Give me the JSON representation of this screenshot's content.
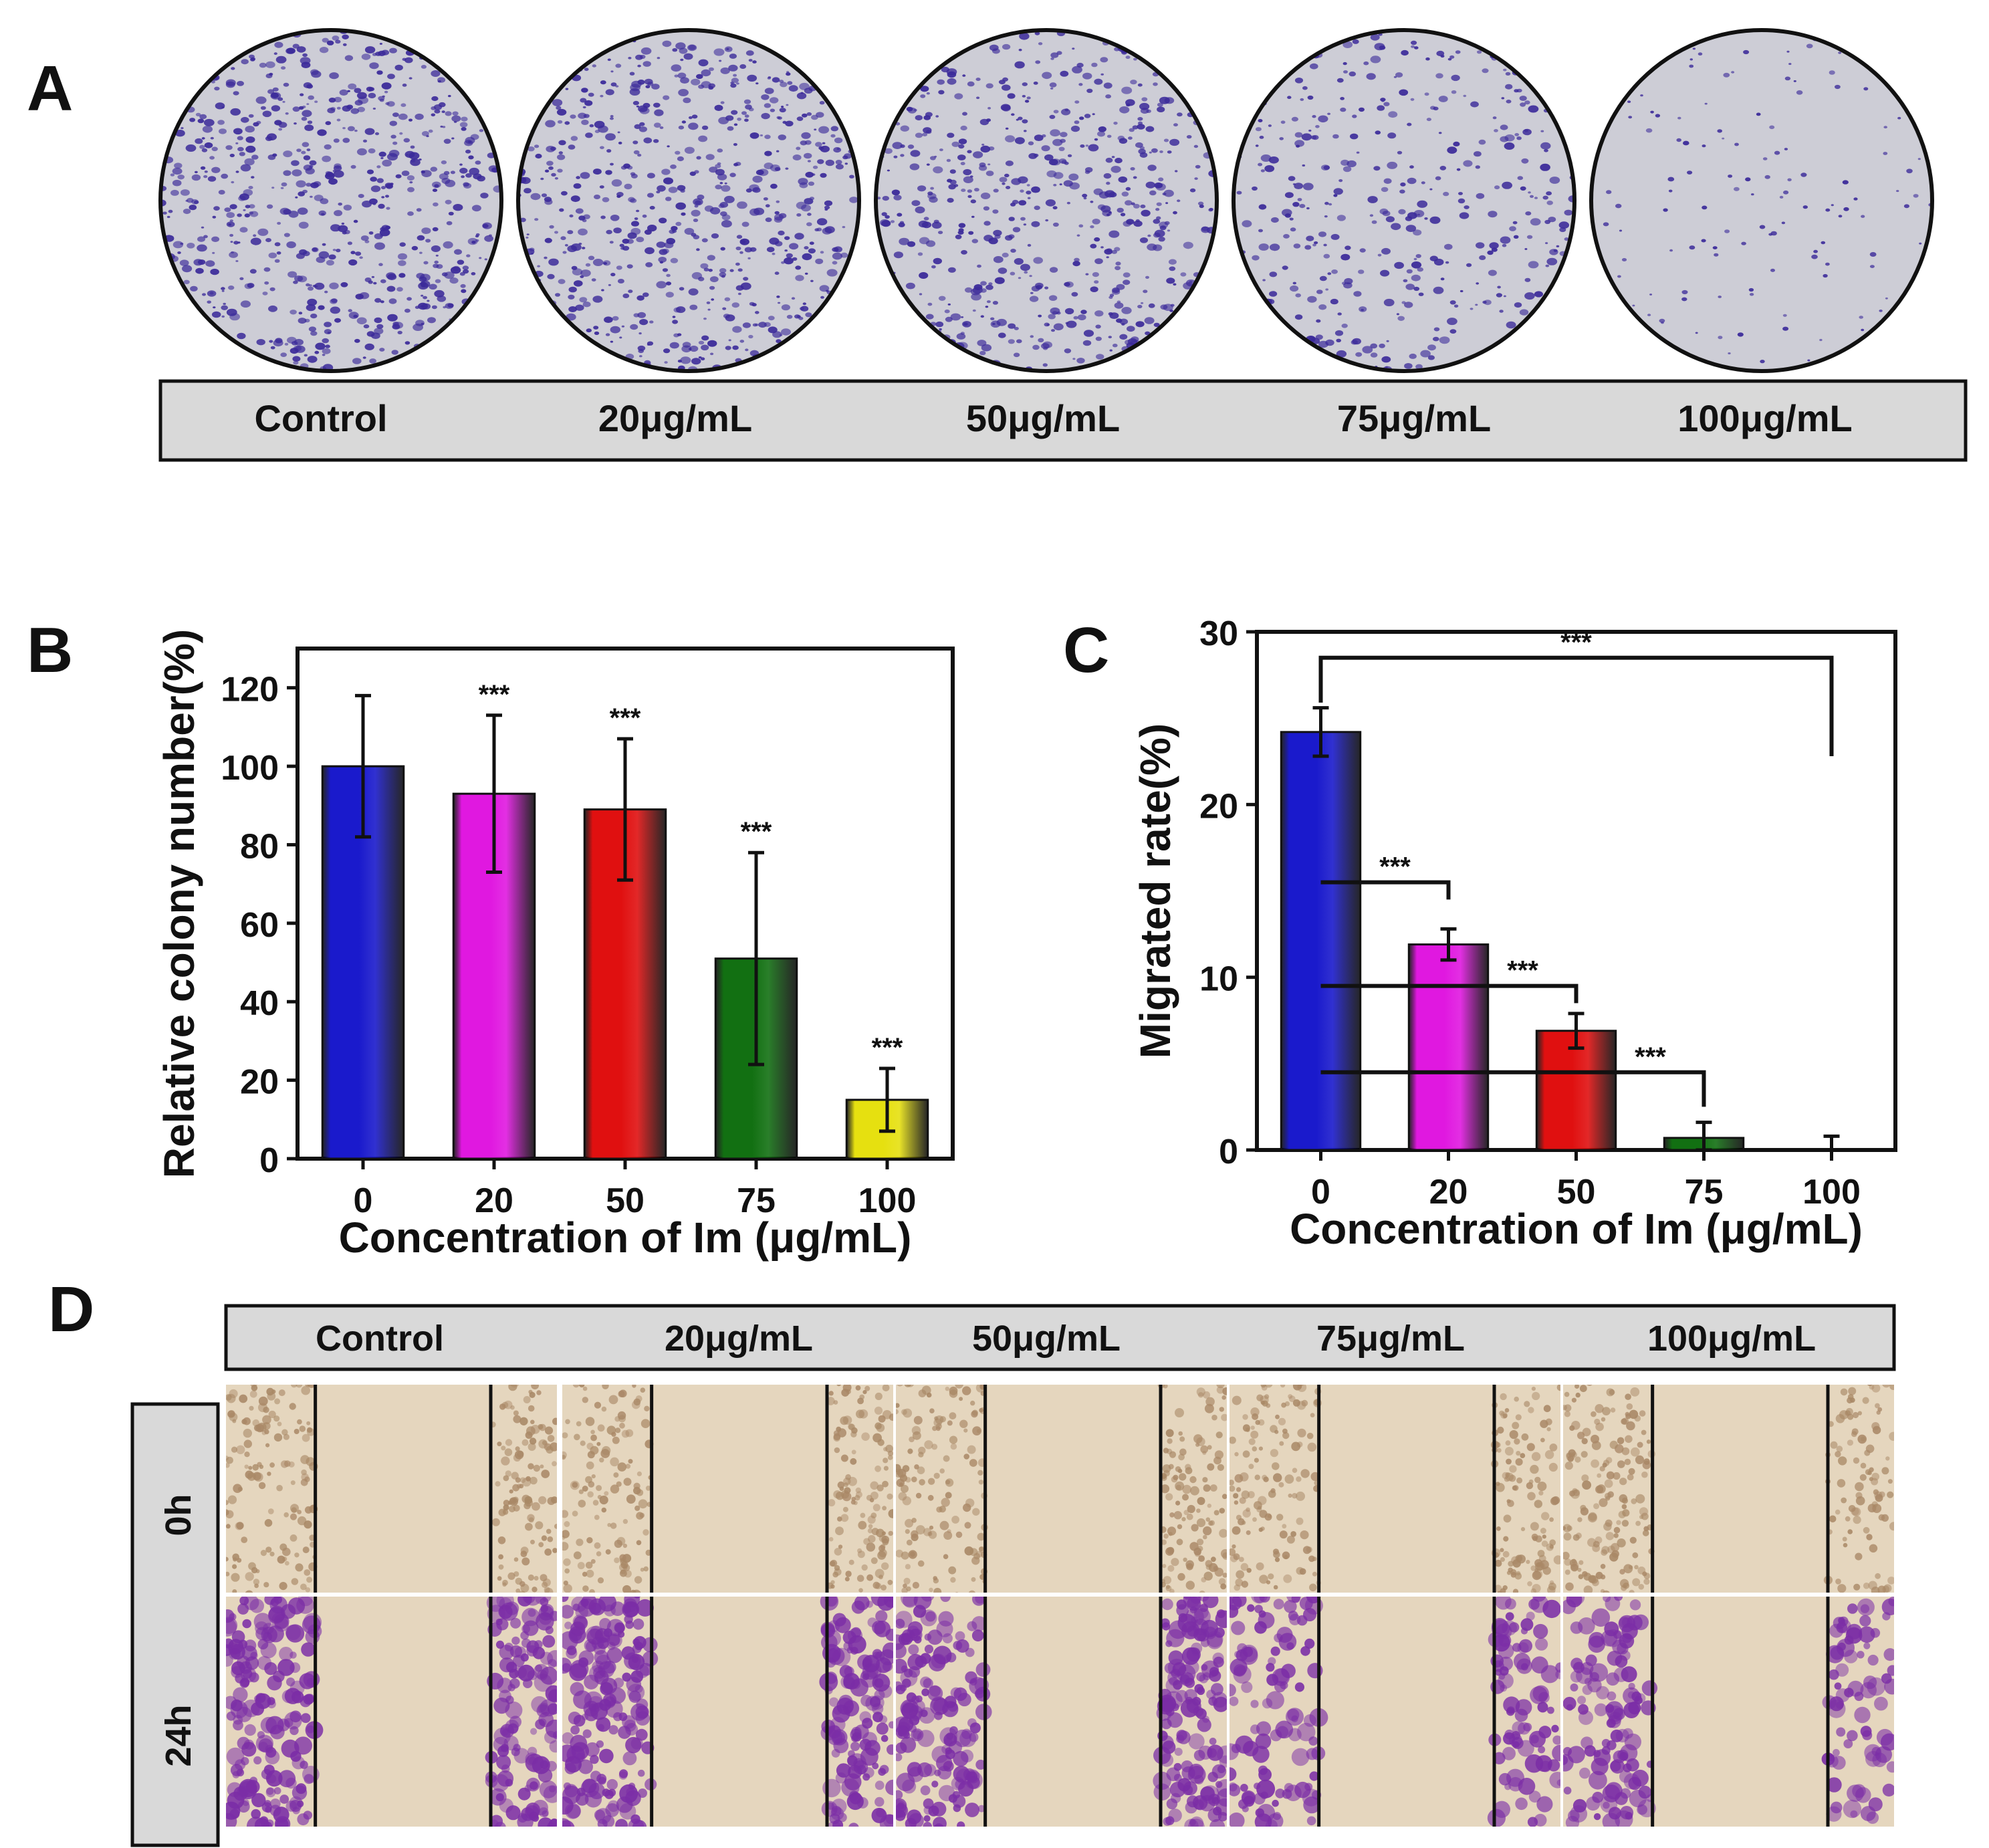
{
  "panels": {
    "a": {
      "letter": "A",
      "labels": [
        "Control",
        "20μg/mL",
        "50μg/mL",
        "75μg/mL",
        "100μg/mL"
      ],
      "dish_stain_color": "#3b2a9a",
      "dish_colony_density": [
        1.0,
        0.95,
        0.85,
        0.55,
        0.18
      ]
    },
    "b": {
      "letter": "B"
    },
    "c": {
      "letter": "C"
    },
    "d": {
      "letter": "D",
      "column_labels": [
        "Control",
        "20μg/mL",
        "50μg/mL",
        "75μg/mL",
        "100μg/mL"
      ],
      "row_labels": [
        "0h",
        "24h"
      ],
      "cell_color_0h": "#a98866",
      "cell_color_24h": "#7b2da6"
    }
  },
  "chart_data": [
    {
      "id": "B",
      "type": "bar",
      "categories": [
        "0",
        "20",
        "50",
        "75",
        "100"
      ],
      "values": [
        100,
        93,
        89,
        51,
        15
      ],
      "errors": [
        18,
        20,
        18,
        27,
        8
      ],
      "significance": [
        "",
        "***",
        "***",
        "***",
        "***"
      ],
      "bar_colors": [
        "#1a1acc",
        "#e018e0",
        "#e01010",
        "#127012",
        "#e6e010"
      ],
      "title": "",
      "xlabel": "Concentration of Im (μg/mL)",
      "ylabel": "Relative colony number(%)",
      "ylim": [
        0,
        130
      ],
      "yticks": [
        0,
        20,
        40,
        60,
        80,
        100,
        120
      ],
      "grid": false
    },
    {
      "id": "C",
      "type": "bar",
      "categories": [
        "0",
        "20",
        "50",
        "75",
        "100"
      ],
      "values": [
        24.2,
        11.9,
        6.9,
        0.7,
        0.0
      ],
      "errors": [
        1.4,
        0.9,
        1.0,
        0.9,
        0.8
      ],
      "bar_colors": [
        "#1a1acc",
        "#e018e0",
        "#e01010",
        "#127012",
        "#e6e010"
      ],
      "comparisons": [
        {
          "from": "0",
          "to": "100",
          "label": "***"
        },
        {
          "from": "0",
          "to": "20",
          "label": "***"
        },
        {
          "from": "0",
          "to": "50",
          "label": "***"
        },
        {
          "from": "0",
          "to": "75",
          "label": "***"
        }
      ],
      "title": "",
      "xlabel": "Concentration of Im (μg/mL)",
      "ylabel": "Migrated rate(%)",
      "ylim": [
        0,
        30
      ],
      "yticks": [
        0,
        10,
        20,
        30
      ],
      "grid": false
    }
  ]
}
